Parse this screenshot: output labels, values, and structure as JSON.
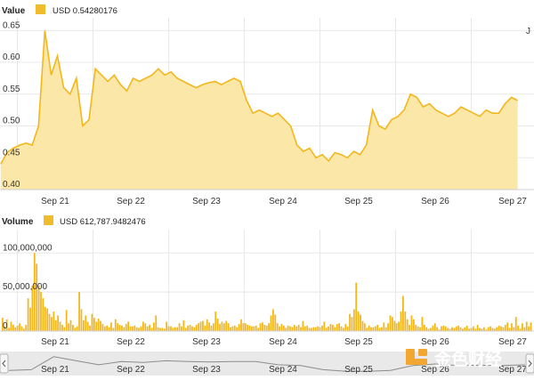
{
  "colors": {
    "accent": "#f0bb2c",
    "area_fill": "#fbe7a8",
    "line": "#f3b71c",
    "bar": "#f3b71c",
    "grid": "#e8e8e8",
    "nav_bg": "#e9e9e9",
    "nav_line": "#8c8c8c",
    "watermark": "#f2a830"
  },
  "watermark": {
    "text": "金色财经",
    "icon": "gold-logo-icon"
  },
  "chart_data": [
    {
      "type": "area",
      "title": "Value",
      "legend": {
        "label": "USD 0.54280176",
        "position": "top-left"
      },
      "corner_mark": "J",
      "x_tick_labels": [
        "Sep 21",
        "Sep 22",
        "Sep 23",
        "Sep 24",
        "Sep 25",
        "Sep 26",
        "Sep 27"
      ],
      "y_tick_labels": [
        "0.40",
        "0.45",
        "0.50",
        "0.55",
        "0.60",
        "0.65"
      ],
      "ylim": [
        0.4,
        0.67
      ],
      "grid": true,
      "x": [
        "Sep 20 12:00",
        "Sep 20 14:00",
        "Sep 20 16:00",
        "Sep 20 18:00",
        "Sep 20 20:00",
        "Sep 20 22:00",
        "Sep 21 00:00",
        "Sep 21 02:00",
        "Sep 21 04:00",
        "Sep 21 06:00",
        "Sep 21 08:00",
        "Sep 21 10:00",
        "Sep 21 12:00",
        "Sep 21 14:00",
        "Sep 21 16:00",
        "Sep 21 18:00",
        "Sep 21 20:00",
        "Sep 21 22:00",
        "Sep 22 00:00",
        "Sep 22 02:00",
        "Sep 22 04:00",
        "Sep 22 06:00",
        "Sep 22 08:00",
        "Sep 22 10:00",
        "Sep 22 12:00",
        "Sep 22 14:00",
        "Sep 22 16:00",
        "Sep 22 18:00",
        "Sep 22 20:00",
        "Sep 22 22:00",
        "Sep 23 00:00",
        "Sep 23 02:00",
        "Sep 23 04:00",
        "Sep 23 06:00",
        "Sep 23 08:00",
        "Sep 23 10:00",
        "Sep 23 12:00",
        "Sep 23 14:00",
        "Sep 23 16:00",
        "Sep 23 18:00",
        "Sep 23 20:00",
        "Sep 23 22:00",
        "Sep 24 00:00",
        "Sep 24 02:00",
        "Sep 24 04:00",
        "Sep 24 06:00",
        "Sep 24 08:00",
        "Sep 24 10:00",
        "Sep 24 12:00",
        "Sep 24 14:00",
        "Sep 24 16:00",
        "Sep 24 18:00",
        "Sep 24 20:00",
        "Sep 24 22:00",
        "Sep 25 00:00",
        "Sep 25 02:00",
        "Sep 25 04:00",
        "Sep 25 06:00",
        "Sep 25 08:00",
        "Sep 25 10:00",
        "Sep 25 12:00",
        "Sep 25 14:00",
        "Sep 25 16:00",
        "Sep 25 18:00",
        "Sep 25 20:00",
        "Sep 25 22:00",
        "Sep 26 00:00",
        "Sep 26 02:00",
        "Sep 26 04:00",
        "Sep 26 06:00",
        "Sep 26 08:00",
        "Sep 26 10:00",
        "Sep 26 12:00",
        "Sep 26 14:00",
        "Sep 26 16:00",
        "Sep 26 18:00",
        "Sep 26 20:00",
        "Sep 26 22:00",
        "Sep 27 00:00",
        "Sep 27 02:00",
        "Sep 27 04:00",
        "Sep 27 06:00",
        "Sep 27 08:00"
      ],
      "values": [
        0.44,
        0.458,
        0.465,
        0.47,
        0.473,
        0.47,
        0.5,
        0.65,
        0.58,
        0.61,
        0.56,
        0.55,
        0.575,
        0.5,
        0.51,
        0.59,
        0.58,
        0.57,
        0.58,
        0.565,
        0.555,
        0.575,
        0.57,
        0.575,
        0.58,
        0.59,
        0.58,
        0.585,
        0.575,
        0.57,
        0.565,
        0.56,
        0.565,
        0.568,
        0.57,
        0.565,
        0.57,
        0.575,
        0.57,
        0.54,
        0.52,
        0.525,
        0.52,
        0.515,
        0.52,
        0.51,
        0.5,
        0.47,
        0.46,
        0.465,
        0.45,
        0.455,
        0.445,
        0.458,
        0.455,
        0.45,
        0.46,
        0.455,
        0.47,
        0.525,
        0.5,
        0.495,
        0.51,
        0.515,
        0.525,
        0.55,
        0.545,
        0.53,
        0.535,
        0.525,
        0.52,
        0.515,
        0.52,
        0.53,
        0.525,
        0.52,
        0.515,
        0.525,
        0.52,
        0.52,
        0.535,
        0.545,
        0.54
      ]
    },
    {
      "type": "bar",
      "title": "Volume",
      "legend": {
        "label": "USD 612,787.9482476",
        "position": "top-left"
      },
      "x_tick_labels": [
        "Sep 21",
        "Sep 22",
        "Sep 23",
        "Sep 24",
        "Sep 25",
        "Sep 26",
        "Sep 27"
      ],
      "y_tick_labels": [
        "0",
        "50,000,000",
        "100,000,000"
      ],
      "ylim": [
        0,
        130000000
      ],
      "grid": true,
      "values": [
        17000000,
        6000000,
        15000000,
        4000000,
        12000000,
        8000000,
        5000000,
        7000000,
        10000000,
        6000000,
        3000000,
        8000000,
        42000000,
        30000000,
        58000000,
        100000000,
        86000000,
        58000000,
        50000000,
        42000000,
        31000000,
        29000000,
        22000000,
        18000000,
        25000000,
        14000000,
        20000000,
        12000000,
        8000000,
        5000000,
        27000000,
        10000000,
        14000000,
        8000000,
        4000000,
        6000000,
        50000000,
        28000000,
        14000000,
        20000000,
        12000000,
        7000000,
        22000000,
        17000000,
        12000000,
        16000000,
        13000000,
        9000000,
        6000000,
        7000000,
        5000000,
        11000000,
        4000000,
        15000000,
        10000000,
        8000000,
        7000000,
        5000000,
        9000000,
        12000000,
        6000000,
        6000000,
        7000000,
        5000000,
        4000000,
        6000000,
        12000000,
        10000000,
        6000000,
        8000000,
        4000000,
        11000000,
        20000000,
        5000000,
        4000000,
        4000000,
        3000000,
        12000000,
        6000000,
        6000000,
        4000000,
        5000000,
        5000000,
        10000000,
        6000000,
        14000000,
        4000000,
        7000000,
        8000000,
        6000000,
        5000000,
        8000000,
        10000000,
        12000000,
        13000000,
        7000000,
        15000000,
        11000000,
        7000000,
        10000000,
        25000000,
        16000000,
        9000000,
        12000000,
        10000000,
        13000000,
        10000000,
        5000000,
        6000000,
        7000000,
        5000000,
        9000000,
        15000000,
        10000000,
        10000000,
        8000000,
        7000000,
        6000000,
        6000000,
        7000000,
        4000000,
        10000000,
        11000000,
        8000000,
        7000000,
        10000000,
        20000000,
        28000000,
        21000000,
        10000000,
        6000000,
        9000000,
        7000000,
        4000000,
        7000000,
        6000000,
        5000000,
        8000000,
        6000000,
        8000000,
        5000000,
        13000000,
        6000000,
        7000000,
        4000000,
        4000000,
        5000000,
        5000000,
        6000000,
        5000000,
        7000000,
        12000000,
        4000000,
        6000000,
        9000000,
        8000000,
        5000000,
        9000000,
        10000000,
        6000000,
        4000000,
        9000000,
        6000000,
        22000000,
        18000000,
        28000000,
        62000000,
        25000000,
        21000000,
        13000000,
        10000000,
        4000000,
        7000000,
        5000000,
        5000000,
        6000000,
        8000000,
        4000000,
        5000000,
        11000000,
        5000000,
        10000000,
        20000000,
        18000000,
        13000000,
        10000000,
        12000000,
        25000000,
        45000000,
        25000000,
        15000000,
        8000000,
        20000000,
        15000000,
        8000000,
        6000000,
        5000000,
        18000000,
        8000000,
        5000000,
        3000000,
        4000000,
        7000000,
        10000000,
        5000000,
        2000000,
        6000000,
        7000000,
        6000000,
        4000000,
        3000000,
        5000000,
        4000000,
        6000000,
        7000000,
        5000000,
        3000000,
        5000000,
        7000000,
        3000000,
        4000000,
        6000000,
        3000000,
        8000000,
        4000000,
        3000000,
        5000000,
        2000000,
        5000000,
        6000000,
        4000000,
        3000000,
        5000000,
        7000000,
        6000000,
        5000000,
        8000000,
        11000000,
        4000000,
        10000000,
        5000000,
        18000000,
        7000000,
        3000000,
        10000000,
        5000000,
        12000000,
        6000000,
        11000000
      ]
    },
    {
      "type": "line",
      "title": "",
      "x_tick_labels": [
        "Sep 21",
        "Sep 22",
        "Sep 23",
        "Sep 24",
        "Sep 25",
        "Sep 26",
        "Sep 27"
      ],
      "values": [
        0.46,
        0.47,
        0.63,
        0.58,
        0.53,
        0.57,
        0.56,
        0.58,
        0.57,
        0.565,
        0.57,
        0.57,
        0.53,
        0.52,
        0.47,
        0.45,
        0.45,
        0.46,
        0.52,
        0.54,
        0.52,
        0.525,
        0.52,
        0.53
      ]
    }
  ],
  "navigator": {
    "left_handle": "left-arrow-icon",
    "right_handle": "right-arrow-icon"
  }
}
